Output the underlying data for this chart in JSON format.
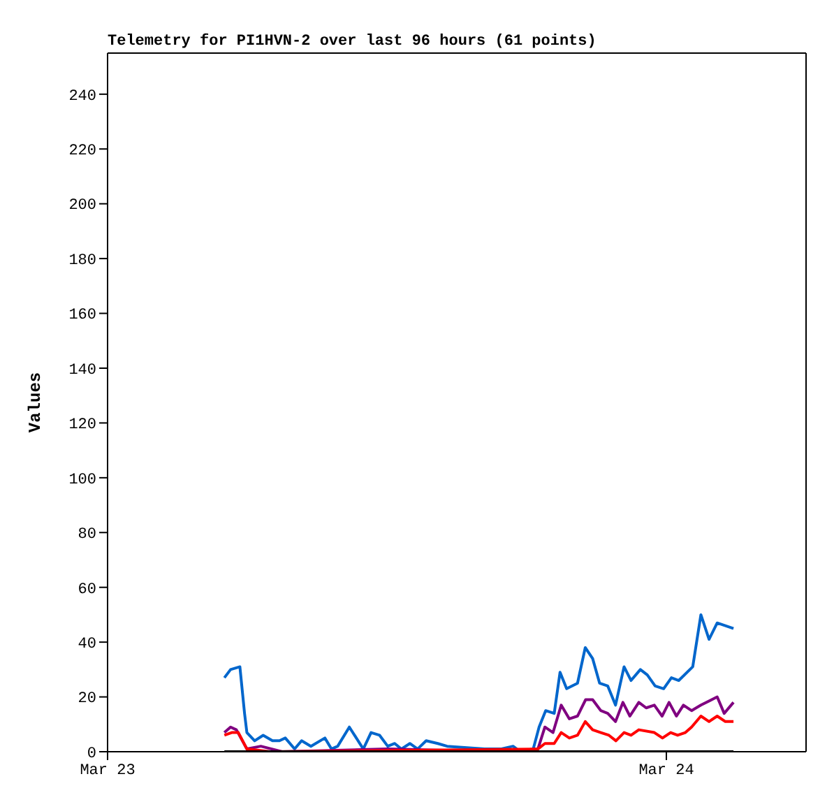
{
  "chart_data": {
    "type": "line",
    "title": "Telemetry for PI1HVN-2 over last 96 hours (61 points)",
    "ylabel": "Values",
    "xlim": [
      "--03-23",
      "--03-24T06:00"
    ],
    "xticks": [
      {
        "value": "--03-23",
        "label": "Mar 23"
      },
      {
        "value": "--03-24",
        "label": "Mar 24"
      }
    ],
    "ylim": [
      0,
      255
    ],
    "yticks": [
      0,
      20,
      40,
      60,
      80,
      100,
      120,
      140,
      160,
      180,
      200,
      220,
      240
    ],
    "series": [
      {
        "color": "#0066cc",
        "x": [
          "--03-23T05:01",
          "--03-23T05:17",
          "--03-23T05:41",
          "--03-23T05:53",
          "--03-23T05:59",
          "--03-23T06:19",
          "--03-23T06:41",
          "--03-23T07:05",
          "--03-23T07:23",
          "--03-23T07:38",
          "--03-23T08:02",
          "--03-23T08:20",
          "--03-23T08:44",
          "--03-23T09:20",
          "--03-23T09:37",
          "--03-23T09:53",
          "--03-23T10:23",
          "--03-23T10:59",
          "--03-23T11:19",
          "--03-23T11:41",
          "--03-23T12:02",
          "--03-23T12:20",
          "--03-23T12:37",
          "--03-23T12:59",
          "--03-23T13:19",
          "--03-23T13:41",
          "--03-23T14:11",
          "--03-23T14:35",
          "--03-23T16:11",
          "--03-23T16:53",
          "--03-23T17:25",
          "--03-23T17:44",
          "--03-23T18:17",
          "--03-23T18:32",
          "--03-23T18:49",
          "--03-23T19:11",
          "--03-23T19:26",
          "--03-23T19:43",
          "--03-23T20:11",
          "--03-23T20:31",
          "--03-23T20:50",
          "--03-23T21:08",
          "--03-23T21:29",
          "--03-23T21:49",
          "--03-23T22:11",
          "--03-23T22:29",
          "--03-23T22:53",
          "--03-23T23:11",
          "--03-23T23:31",
          "--03-23T23:53",
          "--03-24T00:13",
          "--03-24T00:32",
          "--03-24T01:08",
          "--03-24T01:29",
          "--03-24T01:50",
          "--03-24T02:11",
          "--03-24T02:53"
        ],
        "values": [
          27,
          30,
          31,
          14,
          7,
          4,
          6,
          4,
          4,
          5,
          1,
          4,
          2,
          5,
          1,
          2,
          9,
          1,
          7,
          6,
          2,
          3,
          1,
          3,
          1,
          4,
          3,
          2,
          1,
          1,
          2,
          0,
          1,
          9,
          15,
          14,
          29,
          23,
          25,
          38,
          34,
          25,
          24,
          17,
          31,
          26,
          30,
          28,
          24,
          23,
          27,
          26,
          31,
          50,
          41,
          47,
          45
        ]
      },
      {
        "color": "#800080",
        "x": [
          "--03-23T05:01",
          "--03-23T05:17",
          "--03-23T05:32",
          "--03-23T05:59",
          "--03-23T06:35",
          "--03-23T07:30",
          "--03-23T12:00",
          "--03-23T17:00",
          "--03-23T18:29",
          "--03-23T18:47",
          "--03-23T19:08",
          "--03-23T19:29",
          "--03-23T19:50",
          "--03-23T20:11",
          "--03-23T20:32",
          "--03-23T20:50",
          "--03-23T21:11",
          "--03-23T21:29",
          "--03-23T21:49",
          "--03-23T22:08",
          "--03-23T22:26",
          "--03-23T22:49",
          "--03-23T23:08",
          "--03-23T23:29",
          "--03-23T23:49",
          "--03-24T00:07",
          "--03-24T00:26",
          "--03-24T00:44",
          "--03-24T01:05",
          "--03-24T01:29",
          "--03-24T02:11",
          "--03-24T02:29",
          "--03-24T02:53"
        ],
        "values": [
          7,
          9,
          8,
          1,
          2,
          0,
          1,
          0,
          1,
          9,
          7,
          17,
          12,
          13,
          19,
          19,
          15,
          14,
          11,
          18,
          13,
          18,
          16,
          17,
          13,
          18,
          13,
          17,
          15,
          17,
          20,
          14,
          18
        ]
      },
      {
        "color": "#ff0000",
        "x": [
          "--03-23T05:01",
          "--03-23T05:20",
          "--03-23T05:37",
          "--03-23T05:59",
          "--03-23T07:00",
          "--03-23T18:29",
          "--03-23T18:47",
          "--03-23T19:11",
          "--03-23T19:29",
          "--03-23T19:50",
          "--03-23T20:11",
          "--03-23T20:31",
          "--03-23T20:50",
          "--03-23T21:11",
          "--03-23T21:32",
          "--03-23T21:50",
          "--03-23T22:11",
          "--03-23T22:29",
          "--03-23T22:49",
          "--03-23T23:29",
          "--03-23T23:50",
          "--03-24T00:11",
          "--03-24T00:29",
          "--03-24T00:49",
          "--03-24T01:05",
          "--03-24T01:29",
          "--03-24T01:50",
          "--03-24T02:11",
          "--03-24T02:32",
          "--03-24T02:53"
        ],
        "values": [
          6,
          7,
          7,
          1,
          0,
          1,
          3,
          3,
          7,
          5,
          6,
          11,
          8,
          7,
          6,
          4,
          7,
          6,
          8,
          7,
          5,
          7,
          6,
          7,
          9,
          13,
          11,
          13,
          11,
          11
        ]
      },
      {
        "color": "#000000",
        "x": [
          "--03-23T05:01",
          "--03-24T02:53"
        ],
        "values": [
          0,
          0
        ]
      }
    ]
  }
}
